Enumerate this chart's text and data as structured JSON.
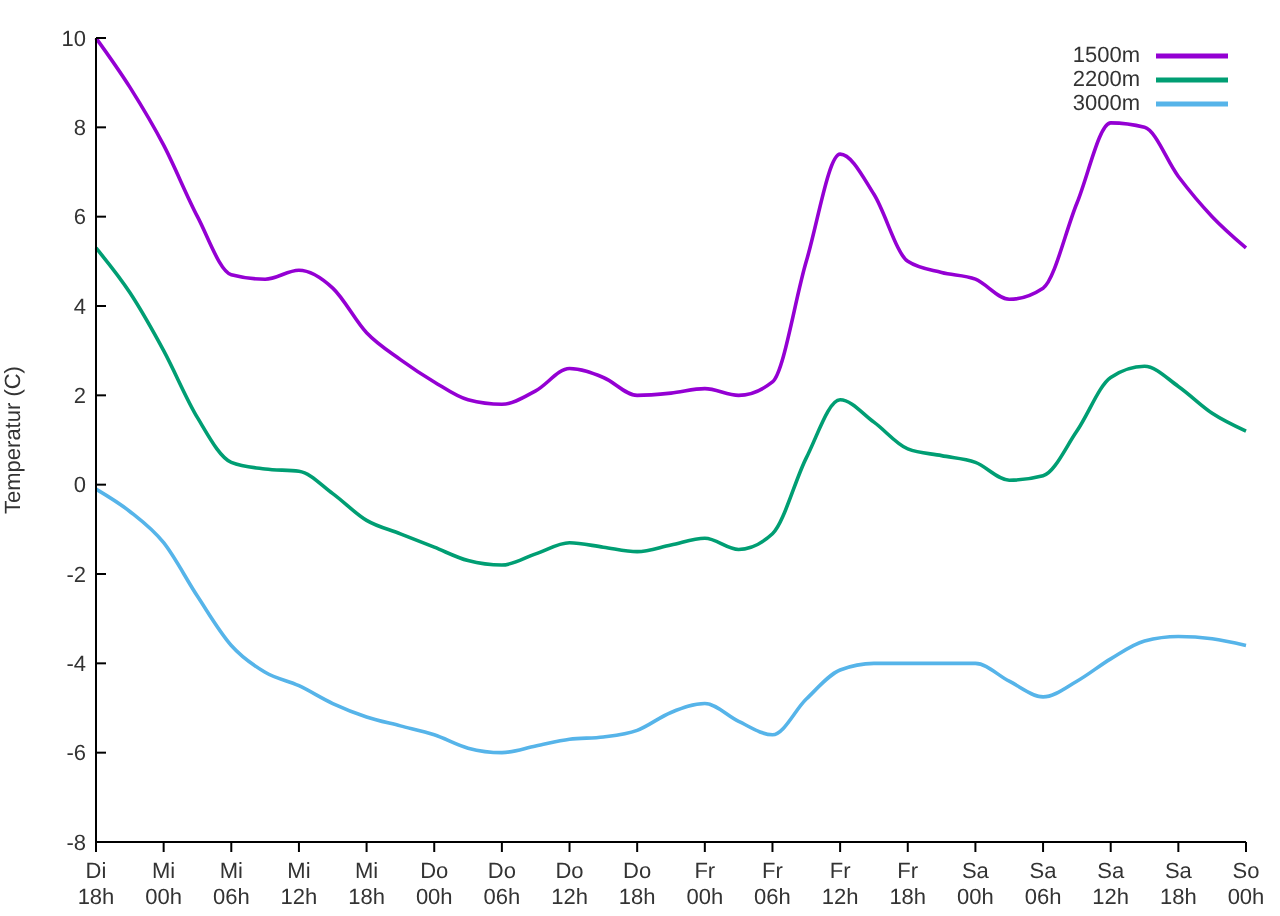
{
  "chart_data": {
    "type": "line",
    "ylabel": "Temperatur (C)",
    "categories": [
      "Di 18h",
      null,
      "Mi 00h",
      null,
      "Mi 06h",
      null,
      "Mi 12h",
      null,
      "Mi 18h",
      null,
      "Do 00h",
      null,
      "Do 06h",
      null,
      "Do 12h",
      null,
      "Do 18h",
      null,
      "Fr 00h",
      null,
      "Fr 06h",
      null,
      "Fr 12h",
      null,
      "Fr 18h",
      null,
      "Sa 00h",
      null,
      "Sa 06h",
      null,
      "Sa 12h",
      null,
      "Sa 18h",
      null,
      "So 00h"
    ],
    "ylim": [
      -8,
      10
    ],
    "yticks": [
      -8,
      -6,
      -4,
      -2,
      0,
      2,
      4,
      6,
      8,
      10
    ],
    "grid": false,
    "legend": "top right",
    "marker": "none",
    "line_style": "solid",
    "series": [
      {
        "name": "1500m",
        "color": "#9400d3",
        "values": [
          10,
          8.9,
          7.6,
          6.0,
          4.7,
          4.6,
          4.8,
          4.4,
          3.4,
          2.8,
          2.3,
          1.9,
          1.8,
          2.1,
          2.6,
          2.4,
          2.0,
          2.05,
          2.15,
          2.0,
          2.3,
          5.0,
          7.4,
          6.5,
          5.0,
          4.75,
          4.6,
          4.15,
          4.4,
          6.3,
          8.1,
          8.0,
          6.9,
          6.0,
          5.3
        ]
      },
      {
        "name": "2200m",
        "color": "#009e73",
        "values": [
          5.3,
          4.3,
          3.0,
          1.5,
          0.5,
          0.35,
          0.3,
          -0.2,
          -0.8,
          -1.1,
          -1.4,
          -1.7,
          -1.8,
          -1.55,
          -1.3,
          -1.4,
          -1.5,
          -1.35,
          -1.2,
          -1.45,
          -1.1,
          0.6,
          1.9,
          1.4,
          0.8,
          0.65,
          0.5,
          0.1,
          0.2,
          1.2,
          2.4,
          2.65,
          2.2,
          1.6,
          1.2
        ]
      },
      {
        "name": "3000m",
        "color": "#56b4e9",
        "values": [
          -0.1,
          -0.6,
          -1.3,
          -2.5,
          -3.6,
          -4.2,
          -4.5,
          -4.9,
          -5.2,
          -5.4,
          -5.6,
          -5.9,
          -6.0,
          -5.85,
          -5.7,
          -5.65,
          -5.5,
          -5.1,
          -4.9,
          -5.3,
          -5.6,
          -4.8,
          -4.15,
          -4.0,
          -4.0,
          -4.0,
          -4.0,
          -4.4,
          -4.75,
          -4.4,
          -3.9,
          -3.5,
          -3.4,
          -3.45,
          -3.6
        ]
      }
    ]
  }
}
